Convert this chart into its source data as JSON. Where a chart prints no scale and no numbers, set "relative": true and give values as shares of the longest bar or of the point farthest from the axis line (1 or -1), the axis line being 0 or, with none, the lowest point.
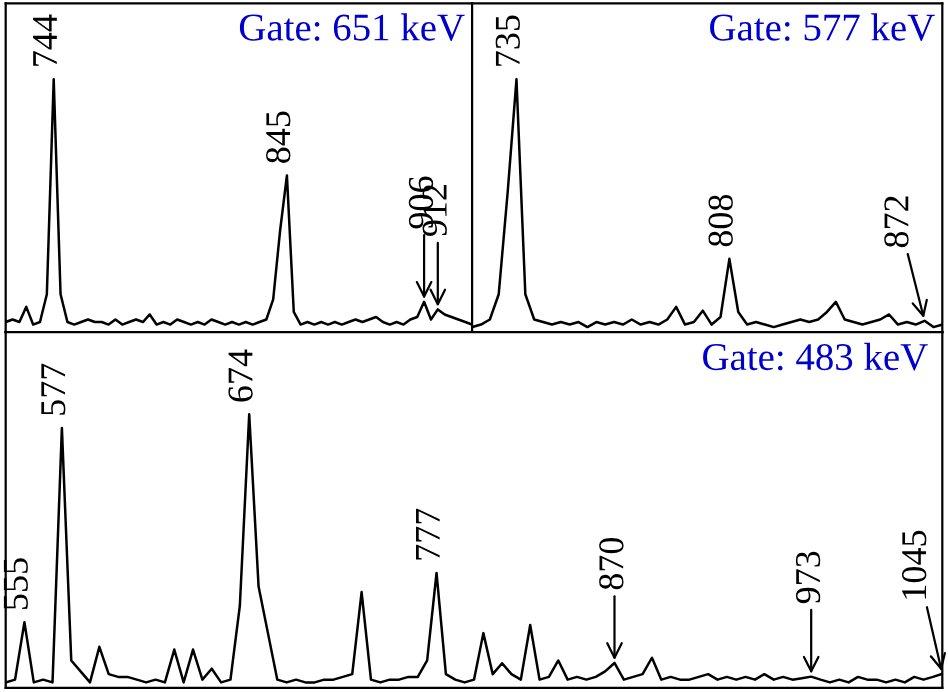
{
  "chart_data": [
    {
      "type": "line",
      "title": "Gate: 651 keV",
      "relative": true,
      "tick_labels": false,
      "marker": "none",
      "line_style": "solid",
      "categories": [
        null,
        null,
        null,
        null,
        null,
        null,
        null,
        null,
        null,
        null,
        null,
        null,
        null,
        null,
        null,
        null,
        null,
        null,
        null,
        null,
        null,
        null,
        null,
        null,
        null,
        null,
        null,
        null,
        null,
        null,
        null,
        null,
        null,
        null,
        null,
        null,
        null,
        null,
        null,
        null,
        null,
        null,
        null,
        null,
        null,
        null,
        null,
        null,
        null,
        null,
        null,
        null,
        null,
        null,
        null,
        null,
        null,
        null,
        null,
        null,
        null,
        null,
        null,
        null,
        null,
        null,
        null,
        null,
        null
      ],
      "series": [
        {
          "color": "#000000",
          "values": [
            0.04,
            0.05,
            0.04,
            0.1,
            0.03,
            0.04,
            0.15,
            1.0,
            0.15,
            0.04,
            0.03,
            0.04,
            0.05,
            0.04,
            0.04,
            0.03,
            0.05,
            0.03,
            0.04,
            0.05,
            0.04,
            0.07,
            0.03,
            0.04,
            0.03,
            0.05,
            0.04,
            0.03,
            0.04,
            0.03,
            0.05,
            0.04,
            0.03,
            0.04,
            0.03,
            0.04,
            0.03,
            0.04,
            0.05,
            0.13,
            0.4,
            0.62,
            0.08,
            0.03,
            0.04,
            0.03,
            0.04,
            0.03,
            0.04,
            0.03,
            0.04,
            0.05,
            0.04,
            0.05,
            0.06,
            0.04,
            0.03,
            0.04,
            0.03,
            0.05,
            0.06,
            0.12,
            0.05,
            0.09,
            0.07,
            0.06,
            0.05,
            0.04,
            0.03
          ]
        }
      ],
      "annotations": [
        {
          "text": "744",
          "y": 1.0
        },
        {
          "text": "845",
          "y": 0.62
        },
        {
          "text": "906",
          "y": 0.12
        },
        {
          "text": "912",
          "y": 0.09
        }
      ]
    },
    {
      "type": "line",
      "title": "Gate: 577 keV",
      "relative": true,
      "tick_labels": false,
      "marker": "none",
      "line_style": "solid",
      "categories": [
        null,
        null,
        null,
        null,
        null,
        null,
        null,
        null,
        null,
        null,
        null,
        null,
        null,
        null,
        null,
        null,
        null,
        null,
        null,
        null,
        null,
        null,
        null,
        null,
        null,
        null,
        null,
        null,
        null,
        null,
        null,
        null,
        null,
        null,
        null,
        null,
        null,
        null,
        null,
        null,
        null,
        null,
        null,
        null,
        null,
        null,
        null,
        null,
        null,
        null,
        null,
        null,
        null,
        null
      ],
      "series": [
        {
          "color": "#000000",
          "values": [
            0.02,
            0.03,
            0.05,
            0.15,
            0.55,
            1.0,
            0.15,
            0.05,
            0.04,
            0.03,
            0.04,
            0.03,
            0.04,
            0.02,
            0.04,
            0.03,
            0.04,
            0.03,
            0.05,
            0.03,
            0.04,
            0.03,
            0.05,
            0.1,
            0.03,
            0.04,
            0.085,
            0.03,
            0.06,
            0.29,
            0.08,
            0.03,
            0.04,
            0.03,
            0.02,
            0.03,
            0.04,
            0.05,
            0.04,
            0.05,
            0.08,
            0.12,
            0.05,
            0.04,
            0.03,
            0.04,
            0.05,
            0.07,
            0.03,
            0.04,
            0.03,
            0.045,
            0.02,
            0.03
          ]
        }
      ],
      "annotations": [
        {
          "text": "735",
          "y": 1.0
        },
        {
          "text": "808",
          "y": 0.29
        },
        {
          "text": "872",
          "y": 0.045
        }
      ]
    },
    {
      "type": "line",
      "title": "Gate: 483 keV",
      "relative": true,
      "tick_labels": false,
      "marker": "none",
      "line_style": "solid",
      "categories": [
        null,
        null,
        null,
        null,
        null,
        null,
        null,
        null,
        null,
        null,
        null,
        null,
        null,
        null,
        null,
        null,
        null,
        null,
        null,
        null,
        null,
        null,
        null,
        null,
        null,
        null,
        null,
        null,
        null,
        null,
        null,
        null,
        null,
        null,
        null,
        null,
        null,
        null,
        null,
        null,
        null,
        null,
        null,
        null,
        null,
        null,
        null,
        null,
        null,
        null,
        null,
        null,
        null,
        null,
        null,
        null,
        null,
        null,
        null,
        null,
        null,
        null,
        null,
        null,
        null,
        null,
        null,
        null,
        null,
        null,
        null,
        null,
        null,
        null,
        null,
        null,
        null,
        null,
        null,
        null,
        null,
        null,
        null,
        null,
        null,
        null,
        null,
        null,
        null,
        null,
        null,
        null,
        null,
        null,
        null,
        null,
        null,
        null,
        null,
        null,
        null
      ],
      "series": [
        {
          "color": "#000000",
          "values": [
            0.02,
            0.03,
            0.24,
            0.02,
            0.03,
            0.02,
            0.95,
            0.1,
            0.06,
            0.02,
            0.15,
            0.05,
            0.04,
            0.04,
            0.03,
            0.02,
            0.03,
            0.02,
            0.14,
            0.02,
            0.14,
            0.03,
            0.07,
            0.02,
            0.03,
            0.3,
            1.0,
            0.37,
            0.2,
            0.03,
            0.02,
            0.03,
            0.02,
            0.02,
            0.03,
            0.03,
            0.04,
            0.05,
            0.35,
            0.03,
            0.02,
            0.03,
            0.03,
            0.04,
            0.04,
            0.1,
            0.42,
            0.05,
            0.03,
            0.02,
            0.03,
            0.2,
            0.05,
            0.09,
            0.05,
            0.03,
            0.23,
            0.03,
            0.04,
            0.1,
            0.03,
            0.04,
            0.03,
            0.04,
            0.06,
            0.091,
            0.03,
            0.04,
            0.05,
            0.11,
            0.03,
            0.04,
            0.03,
            0.03,
            0.04,
            0.05,
            0.03,
            0.04,
            0.03,
            0.04,
            0.03,
            0.05,
            0.03,
            0.04,
            0.03,
            0.035,
            0.041,
            0.03,
            0.02,
            0.03,
            0.02,
            0.04,
            0.03,
            0.03,
            0.02,
            0.03,
            0.02,
            0.04,
            0.03,
            0.04,
            0.051
          ]
        }
      ],
      "annotations": [
        {
          "text": "555",
          "y": 0.24
        },
        {
          "text": "577",
          "y": 0.95
        },
        {
          "text": "674",
          "y": 1.0
        },
        {
          "text": "777",
          "y": 0.42
        },
        {
          "text": "870",
          "y": 0.091
        },
        {
          "text": "973",
          "y": 0.041
        },
        {
          "text": "1045",
          "y": 0.051
        }
      ]
    }
  ]
}
